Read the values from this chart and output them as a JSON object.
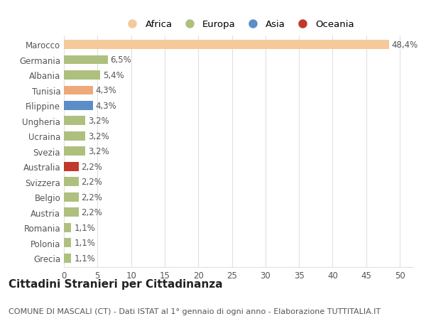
{
  "categories": [
    "Grecia",
    "Polonia",
    "Romania",
    "Austria",
    "Belgio",
    "Svizzera",
    "Australia",
    "Svezia",
    "Ucraina",
    "Ungheria",
    "Filippine",
    "Tunisia",
    "Albania",
    "Germania",
    "Marocco"
  ],
  "values": [
    1.1,
    1.1,
    1.1,
    2.2,
    2.2,
    2.2,
    2.2,
    3.2,
    3.2,
    3.2,
    4.3,
    4.3,
    5.4,
    6.5,
    48.4
  ],
  "colors": [
    "#aec07e",
    "#aec07e",
    "#aec07e",
    "#aec07e",
    "#aec07e",
    "#aec07e",
    "#c0392b",
    "#aec07e",
    "#aec07e",
    "#aec07e",
    "#5b8dc8",
    "#f0a87a",
    "#aec07e",
    "#aec07e",
    "#f5c99a"
  ],
  "labels": [
    "1,1%",
    "1,1%",
    "1,1%",
    "2,2%",
    "2,2%",
    "2,2%",
    "2,2%",
    "3,2%",
    "3,2%",
    "3,2%",
    "4,3%",
    "4,3%",
    "5,4%",
    "6,5%",
    "48,4%"
  ],
  "legend": [
    {
      "label": "Africa",
      "color": "#f5c99a"
    },
    {
      "label": "Europa",
      "color": "#aec07e"
    },
    {
      "label": "Asia",
      "color": "#5b8dc8"
    },
    {
      "label": "Oceania",
      "color": "#c0392b"
    }
  ],
  "title": "Cittadini Stranieri per Cittadinanza",
  "subtitle": "COMUNE DI MASCALI (CT) - Dati ISTAT al 1° gennaio di ogni anno - Elaborazione TUTTITALIA.IT",
  "xlim": [
    0,
    52
  ],
  "xticks": [
    0,
    5,
    10,
    15,
    20,
    25,
    30,
    35,
    40,
    45,
    50
  ],
  "background_color": "#ffffff",
  "grid_color": "#e0e0e0",
  "bar_height": 0.6,
  "label_fontsize": 8.5,
  "tick_fontsize": 8.5,
  "title_fontsize": 11,
  "subtitle_fontsize": 8
}
